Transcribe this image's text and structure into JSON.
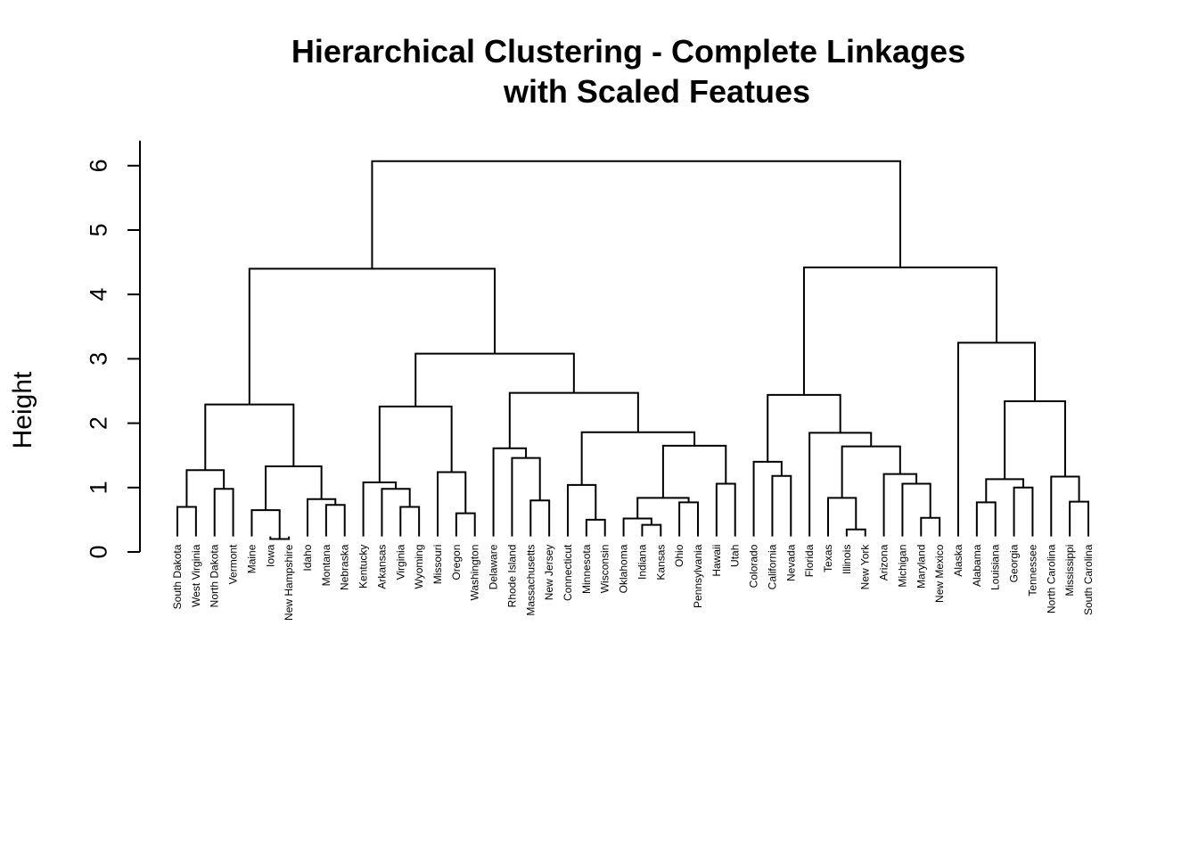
{
  "chart_data": {
    "type": "dendrogram",
    "title_line1": "Hierarchical Clustering - Complete Linkages",
    "title_line2": "with Scaled Featues",
    "ylabel": "Height",
    "ylim": [
      0,
      6
    ],
    "yticks": [
      0,
      1,
      2,
      3,
      4,
      5,
      6
    ],
    "leaves": [
      "South Dakota",
      "West Virginia",
      "North Dakota",
      "Vermont",
      "Maine",
      "Iowa",
      "New Hampshire",
      "Idaho",
      "Montana",
      "Nebraska",
      "Kentucky",
      "Arkansas",
      "Virginia",
      "Wyoming",
      "Missouri",
      "Oregon",
      "Washington",
      "Delaware",
      "Rhode Island",
      "Massachusetts",
      "New Jersey",
      "Connecticut",
      "Minnesota",
      "Wisconsin",
      "Oklahoma",
      "Indiana",
      "Kansas",
      "Ohio",
      "Pennsylvania",
      "Hawaii",
      "Utah",
      "Colorado",
      "California",
      "Nevada",
      "Florida",
      "Texas",
      "Illinois",
      "New York",
      "Arizona",
      "Michigan",
      "Maryland",
      "New Mexico",
      "Alaska",
      "Alabama",
      "Louisiana",
      "Georgia",
      "Tennessee",
      "North Carolina",
      "Mississippi",
      "South Carolina"
    ],
    "merges": [
      [
        "Iowa",
        "New Hampshire",
        0.2
      ],
      [
        "Illinois",
        "New York",
        0.35
      ],
      [
        "Indiana",
        "Kansas",
        0.42
      ],
      [
        "Minnesota",
        "Wisconsin",
        0.5
      ],
      [
        "Oklahoma",
        "Indiana+Kansas",
        0.52
      ],
      [
        "Maryland",
        "New Mexico",
        0.53
      ],
      [
        "Oregon",
        "Washington",
        0.6
      ],
      [
        "Maine",
        "Iowa+New Hampshire",
        0.65
      ],
      [
        "South Dakota",
        "West Virginia",
        0.7
      ],
      [
        "Virginia",
        "Wyoming",
        0.7
      ],
      [
        "Montana",
        "Nebraska",
        0.73
      ],
      [
        "Ohio",
        "Pennsylvania",
        0.77
      ],
      [
        "Alabama",
        "Louisiana",
        0.77
      ],
      [
        "Mississippi",
        "South Carolina",
        0.78
      ],
      [
        "Massachusetts",
        "New Jersey",
        0.8
      ],
      [
        "Idaho",
        "Montana+Nebraska",
        0.82
      ],
      [
        "Oklahoma+Indiana+Kansas",
        "Ohio+Pennsylvania",
        0.84
      ],
      [
        "Texas",
        "Illinois+New York",
        0.84
      ],
      [
        "North Dakota",
        "Vermont",
        0.98
      ],
      [
        "Arkansas",
        "Virginia+Wyoming",
        0.98
      ],
      [
        "Georgia",
        "Tennessee",
        1.0
      ],
      [
        "Connecticut",
        "Minnesota+Wisconsin",
        1.04
      ],
      [
        "Hawaii",
        "Utah",
        1.06
      ],
      [
        "Michigan",
        "Maryland+New Mexico",
        1.06
      ],
      [
        "Kentucky",
        "Arkansas+Virginia+Wyoming",
        1.08
      ],
      [
        "Alabama+Louisiana",
        "Georgia+Tennessee",
        1.13
      ],
      [
        "North Carolina",
        "Mississippi+South Carolina",
        1.17
      ],
      [
        "California",
        "Nevada",
        1.18
      ],
      [
        "Arizona",
        "Michigan+Maryland+New Mexico",
        1.21
      ],
      [
        "Missouri",
        "Oregon+Washington",
        1.24
      ],
      [
        "South Dakota+West Virginia",
        "North Dakota+Vermont",
        1.27
      ],
      [
        "Maine+Iowa+New Hampshire",
        "Idaho+Montana+Nebraska",
        1.33
      ],
      [
        "Colorado",
        "California+Nevada",
        1.4
      ],
      [
        "Rhode Island",
        "Massachusetts+New Jersey",
        1.46
      ],
      [
        "Delaware",
        "Rhode Island+Massachusetts+New Jersey",
        1.61
      ],
      [
        "Texas+Illinois+New York",
        "Arizona+Michigan+Maryland+New Mexico",
        1.64
      ],
      [
        "Oklahoma..Pennsylvania",
        "Hawaii+Utah",
        1.65
      ],
      [
        "Connecticut+Minnesota+Wisconsin",
        "Oklahoma..Utah",
        1.86
      ],
      [
        "Florida",
        "Texas..New Mexico",
        1.85
      ],
      [
        "Kentucky..Wyoming",
        "Missouri+Oregon+Washington",
        2.26
      ],
      [
        "South Dakota..Vermont",
        "Maine..Nebraska",
        2.29
      ],
      [
        "Alabama..Tennessee",
        "North Carolina..South Carolina",
        2.34
      ],
      [
        "Colorado+California+Nevada",
        "Florida..New Mexico",
        2.44
      ],
      [
        "Delaware..New Jersey",
        "Connecticut..Utah",
        2.47
      ],
      [
        "Kentucky..Washington",
        "Delaware..Utah",
        3.08
      ],
      [
        "Alaska",
        "Alabama..South Carolina",
        3.25
      ],
      [
        "South Dakota..Nebraska",
        "Kentucky..Utah",
        4.4
      ],
      [
        "Colorado..New Mexico",
        "Alaska..South Carolina",
        4.42
      ],
      [
        "South Dakota..Utah",
        "Colorado..South Carolina",
        6.07
      ]
    ]
  }
}
